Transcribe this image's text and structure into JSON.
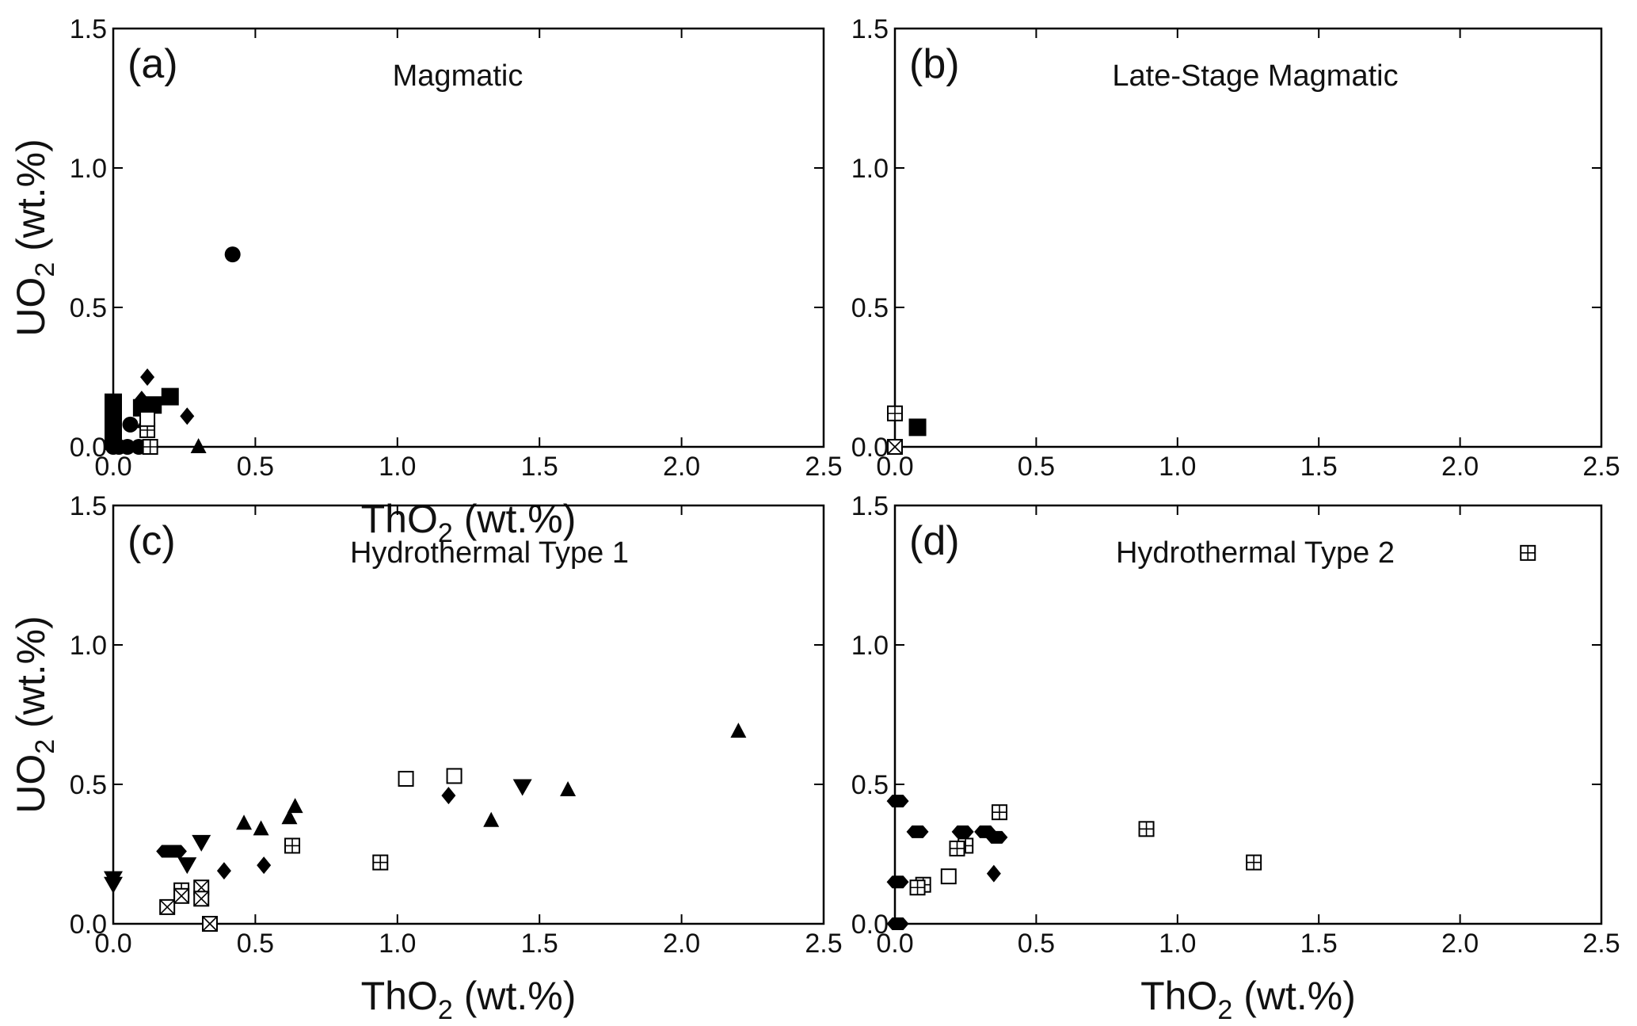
{
  "chart_data": [
    {
      "type": "scatter",
      "panel_label": "(a)",
      "title": "Magmatic",
      "xlabel": "ThO",
      "xlabel_sub": "2",
      "xlabel_unit": " (wt.%)",
      "ylabel": "UO",
      "ylabel_sub": "2",
      "ylabel_unit": " (wt.%)",
      "xlim": [
        0,
        2.5
      ],
      "ylim": [
        0,
        1.5
      ],
      "x_ticks": [
        "0.0",
        "0.5",
        "1.0",
        "1.5",
        "2.0",
        "2.5"
      ],
      "y_ticks": [
        "0.0",
        "0.5",
        "1.0",
        "1.5"
      ],
      "points": [
        {
          "x": 0.42,
          "y": 0.69,
          "marker": "circle"
        },
        {
          "x": 0.06,
          "y": 0.08,
          "marker": "circle"
        },
        {
          "x": 0.0,
          "y": 0.0,
          "marker": "circle"
        },
        {
          "x": 0.02,
          "y": 0.0,
          "marker": "circle"
        },
        {
          "x": 0.05,
          "y": 0.0,
          "marker": "circle"
        },
        {
          "x": 0.09,
          "y": 0.0,
          "marker": "circle"
        },
        {
          "x": 0.0,
          "y": 0.16,
          "marker": "square"
        },
        {
          "x": 0.0,
          "y": 0.14,
          "marker": "square"
        },
        {
          "x": 0.0,
          "y": 0.12,
          "marker": "square"
        },
        {
          "x": 0.0,
          "y": 0.1,
          "marker": "square"
        },
        {
          "x": 0.0,
          "y": 0.08,
          "marker": "square"
        },
        {
          "x": 0.0,
          "y": 0.06,
          "marker": "square"
        },
        {
          "x": 0.0,
          "y": 0.04,
          "marker": "square"
        },
        {
          "x": 0.0,
          "y": 0.02,
          "marker": "square"
        },
        {
          "x": 0.1,
          "y": 0.14,
          "marker": "square"
        },
        {
          "x": 0.14,
          "y": 0.15,
          "marker": "square"
        },
        {
          "x": 0.2,
          "y": 0.18,
          "marker": "square"
        },
        {
          "x": 0.12,
          "y": 0.25,
          "marker": "diamond"
        },
        {
          "x": 0.1,
          "y": 0.17,
          "marker": "diamond"
        },
        {
          "x": 0.26,
          "y": 0.11,
          "marker": "diamond"
        },
        {
          "x": 0.12,
          "y": 0.12,
          "marker": "diamond"
        },
        {
          "x": 0.3,
          "y": 0.0,
          "marker": "triangle-up"
        },
        {
          "x": 0.11,
          "y": 0.09,
          "marker": "triangle-up"
        },
        {
          "x": 0.12,
          "y": 0.06,
          "marker": "square-plus"
        },
        {
          "x": 0.13,
          "y": 0.0,
          "marker": "square-plus"
        },
        {
          "x": 0.12,
          "y": 0.1,
          "marker": "square-open"
        }
      ]
    },
    {
      "type": "scatter",
      "panel_label": "(b)",
      "title": "Late-Stage Magmatic",
      "xlabel": "",
      "ylabel": "",
      "xlim": [
        0,
        2.5
      ],
      "ylim": [
        0,
        1.5
      ],
      "x_ticks": [
        "0.0",
        "0.5",
        "1.0",
        "1.5",
        "2.0",
        "2.5"
      ],
      "y_ticks": [
        "0.0",
        "0.5",
        "1.0",
        "1.5"
      ],
      "points": [
        {
          "x": 0.0,
          "y": 0.12,
          "marker": "square-plus"
        },
        {
          "x": 0.0,
          "y": 0.0,
          "marker": "square-x"
        },
        {
          "x": 0.08,
          "y": 0.07,
          "marker": "square"
        }
      ]
    },
    {
      "type": "scatter",
      "panel_label": "(c)",
      "title": "Hydrothermal Type 1",
      "xlabel": "ThO",
      "xlabel_sub": "2",
      "xlabel_unit": " (wt.%)",
      "ylabel": "UO",
      "ylabel_sub": "2",
      "ylabel_unit": " (wt.%)",
      "xlim": [
        0,
        2.5
      ],
      "ylim": [
        0,
        1.5
      ],
      "x_ticks": [
        "0.0",
        "0.5",
        "1.0",
        "1.5",
        "2.0",
        "2.5"
      ],
      "y_ticks": [
        "0.0",
        "0.5",
        "1.0",
        "1.5"
      ],
      "points": [
        {
          "x": 2.2,
          "y": 0.69,
          "marker": "triangle-up"
        },
        {
          "x": 1.6,
          "y": 0.48,
          "marker": "triangle-up"
        },
        {
          "x": 1.33,
          "y": 0.37,
          "marker": "triangle-up"
        },
        {
          "x": 0.64,
          "y": 0.42,
          "marker": "triangle-up"
        },
        {
          "x": 0.62,
          "y": 0.38,
          "marker": "triangle-up"
        },
        {
          "x": 0.52,
          "y": 0.34,
          "marker": "triangle-up"
        },
        {
          "x": 0.46,
          "y": 0.36,
          "marker": "triangle-up"
        },
        {
          "x": 1.44,
          "y": 0.49,
          "marker": "triangle-down"
        },
        {
          "x": 0.31,
          "y": 0.29,
          "marker": "triangle-down"
        },
        {
          "x": 0.26,
          "y": 0.21,
          "marker": "triangle-down"
        },
        {
          "x": 0.0,
          "y": 0.16,
          "marker": "triangle-down"
        },
        {
          "x": 0.0,
          "y": 0.14,
          "marker": "triangle-down"
        },
        {
          "x": 1.18,
          "y": 0.46,
          "marker": "diamond"
        },
        {
          "x": 0.53,
          "y": 0.21,
          "marker": "diamond"
        },
        {
          "x": 0.39,
          "y": 0.19,
          "marker": "diamond"
        },
        {
          "x": 0.19,
          "y": 0.26,
          "marker": "hexagon"
        },
        {
          "x": 0.22,
          "y": 0.26,
          "marker": "hexagon"
        },
        {
          "x": 1.03,
          "y": 0.52,
          "marker": "square-open"
        },
        {
          "x": 1.2,
          "y": 0.53,
          "marker": "square-open"
        },
        {
          "x": 0.94,
          "y": 0.22,
          "marker": "square-plus"
        },
        {
          "x": 0.63,
          "y": 0.28,
          "marker": "square-plus"
        },
        {
          "x": 0.24,
          "y": 0.12,
          "marker": "square-plus"
        },
        {
          "x": 0.19,
          "y": 0.06,
          "marker": "square-x"
        },
        {
          "x": 0.24,
          "y": 0.1,
          "marker": "square-x"
        },
        {
          "x": 0.31,
          "y": 0.13,
          "marker": "square-x"
        },
        {
          "x": 0.31,
          "y": 0.09,
          "marker": "square-x"
        },
        {
          "x": 0.34,
          "y": 0.0,
          "marker": "square-x"
        }
      ]
    },
    {
      "type": "scatter",
      "panel_label": "(d)",
      "title": "Hydrothermal Type 2",
      "xlabel": "ThO",
      "xlabel_sub": "2",
      "xlabel_unit": " (wt.%)",
      "ylabel": "",
      "xlim": [
        0,
        2.5
      ],
      "ylim": [
        0,
        1.5
      ],
      "x_ticks": [
        "0.0",
        "0.5",
        "1.0",
        "1.5",
        "2.0",
        "2.5"
      ],
      "y_ticks": [
        "0.0",
        "0.5",
        "1.0",
        "1.5"
      ],
      "points": [
        {
          "x": 2.24,
          "y": 1.33,
          "marker": "square-plus"
        },
        {
          "x": 1.27,
          "y": 0.22,
          "marker": "square-plus"
        },
        {
          "x": 0.89,
          "y": 0.34,
          "marker": "square-plus"
        },
        {
          "x": 0.37,
          "y": 0.4,
          "marker": "square-plus"
        },
        {
          "x": 0.25,
          "y": 0.28,
          "marker": "square-plus"
        },
        {
          "x": 0.22,
          "y": 0.27,
          "marker": "square-plus"
        },
        {
          "x": 0.1,
          "y": 0.14,
          "marker": "square-plus"
        },
        {
          "x": 0.08,
          "y": 0.13,
          "marker": "square-plus"
        },
        {
          "x": 0.19,
          "y": 0.17,
          "marker": "square-open"
        },
        {
          "x": 0.01,
          "y": 0.44,
          "marker": "hexagon"
        },
        {
          "x": 0.08,
          "y": 0.33,
          "marker": "hexagon"
        },
        {
          "x": 0.24,
          "y": 0.33,
          "marker": "hexagon"
        },
        {
          "x": 0.32,
          "y": 0.33,
          "marker": "hexagon"
        },
        {
          "x": 0.36,
          "y": 0.31,
          "marker": "hexagon"
        },
        {
          "x": 0.01,
          "y": 0.15,
          "marker": "hexagon"
        },
        {
          "x": 0.01,
          "y": 0.0,
          "marker": "hexagon"
        },
        {
          "x": 0.35,
          "y": 0.18,
          "marker": "diamond"
        }
      ]
    }
  ]
}
